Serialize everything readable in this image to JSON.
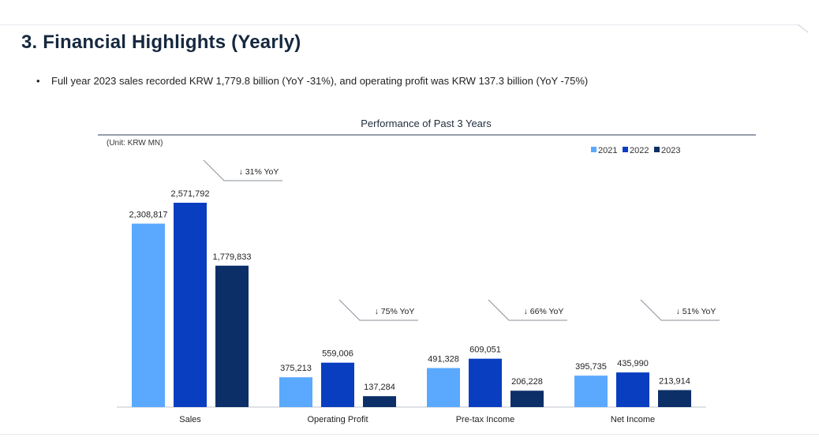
{
  "page": {
    "title": "3. Financial Highlights (Yearly)",
    "bullet": "Full year 2023 sales recorded KRW 1,779.8 billion (YoY -31%), and operating profit was KRW 137.3 billion (YoY -75%)"
  },
  "colors": {
    "s2021": "#5aa9ff",
    "s2022": "#0a3ec0",
    "s2023": "#0c2f68"
  },
  "chart_data": {
    "type": "bar",
    "title": "Performance of Past 3 Years",
    "unit_label": "(Unit: KRW MN)",
    "categories": [
      "Sales",
      "Operating Profit",
      "Pre-tax Income",
      "Net Income"
    ],
    "series": [
      {
        "name": "2021",
        "values": [
          2308817,
          375213,
          491328,
          395735
        ],
        "labels": [
          "2,308,817",
          "375,213",
          "491,328",
          "395,735"
        ]
      },
      {
        "name": "2022",
        "values": [
          2571792,
          559006,
          609051,
          435990
        ],
        "labels": [
          "2,571,792",
          "559,006",
          "609,051",
          "435,990"
        ]
      },
      {
        "name": "2023",
        "values": [
          1779833,
          137284,
          206228,
          213914
        ],
        "labels": [
          "1,779,833",
          "137,284",
          "206,228",
          "213,914"
        ]
      }
    ],
    "annotations": [
      "↓ 31% YoY",
      "↓ 75% YoY",
      "↓ 66% YoY",
      "↓ 51% YoY"
    ],
    "legend_position": "top-right",
    "grid": false
  }
}
